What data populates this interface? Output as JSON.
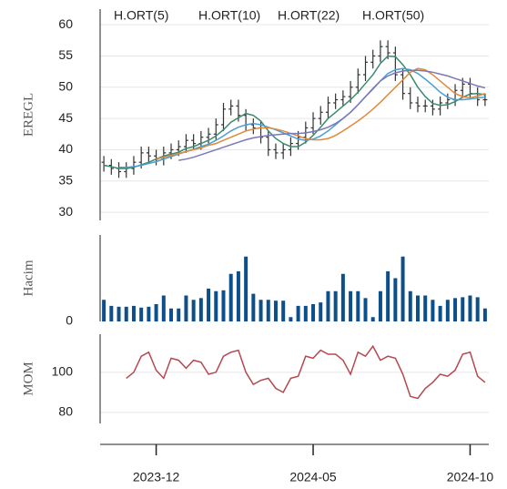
{
  "chart_data": [
    {
      "type": "ohlc",
      "ylabel": "EREGL",
      "open": [
        38,
        37.5,
        37,
        36.5,
        37,
        38,
        39.5,
        39,
        38.5,
        39.5,
        40,
        40.5,
        41.5,
        41,
        42,
        42.5,
        44,
        46.5,
        47,
        45.5,
        44,
        43.5,
        42,
        40,
        39.5,
        40,
        41,
        42,
        43.5,
        45,
        46,
        47.5,
        48,
        48.5,
        50,
        52,
        54,
        55,
        56.5,
        55.5,
        52,
        49,
        47.5,
        47,
        47,
        46.5,
        47.5,
        48,
        49.5,
        50.5,
        49,
        48
      ],
      "high": [
        39,
        38.5,
        38,
        38,
        39,
        40.5,
        40.5,
        40,
        40.5,
        41,
        41.5,
        42.5,
        42.5,
        43,
        43.5,
        45,
        47.5,
        48,
        48,
        46.5,
        45,
        44.5,
        43,
        41,
        41,
        42,
        43,
        44.5,
        46,
        47,
        48.5,
        49,
        49.5,
        51,
        53,
        55,
        56,
        57.5,
        57.5,
        56.5,
        53,
        50,
        48.5,
        48,
        48,
        48.5,
        49,
        50.5,
        51.5,
        51.5,
        50,
        49
      ],
      "low": [
        36.5,
        36,
        35.5,
        35.5,
        36,
        37,
        38,
        37.5,
        37.5,
        38.5,
        39,
        39.5,
        40,
        40,
        41,
        41.5,
        43,
        45.5,
        44.5,
        43,
        42.5,
        41,
        39,
        38.5,
        38.5,
        39,
        40,
        41,
        42.5,
        44,
        45,
        46.5,
        47,
        47.5,
        49,
        51,
        53,
        54,
        54.5,
        51,
        48,
        46.5,
        46,
        46,
        45.5,
        45.5,
        46.5,
        47,
        48.5,
        48,
        47,
        47
      ],
      "close": [
        37.5,
        37,
        36.5,
        37,
        38,
        39.5,
        39,
        38.5,
        39.5,
        40,
        40.5,
        41.5,
        41,
        42,
        42.5,
        44,
        46.5,
        47,
        45.5,
        44,
        43.5,
        42,
        40,
        39.5,
        40,
        41,
        42,
        43.5,
        45,
        46,
        47.5,
        48,
        48.5,
        50,
        52,
        54,
        55,
        56.5,
        55.5,
        52,
        49,
        47.5,
        47,
        47,
        46.5,
        47.5,
        48,
        49.5,
        50.5,
        49,
        48,
        48
      ],
      "color": "#333333",
      "series": [
        {
          "name": "H.ORT(5)",
          "color": "#3a8a6e",
          "values": [
            37.5,
            37.3,
            37,
            37,
            37.2,
            37.6,
            38,
            38.5,
            39,
            39.3,
            39.6,
            40.2,
            40.5,
            41,
            41.5,
            42.2,
            43.2,
            44.4,
            45.1,
            45.8,
            45.5,
            44.6,
            43,
            41.8,
            41,
            40.5,
            40.5,
            41.2,
            42.3,
            43.6,
            45,
            46,
            47,
            48,
            49.2,
            50.6,
            52,
            53.8,
            55,
            54.9,
            53.6,
            52,
            50,
            48.5,
            47.4,
            47.1,
            47.2,
            47.7,
            48.4,
            48.9,
            49,
            48.8
          ]
        },
        {
          "name": "H.ORT(10)",
          "color": "#4a9fd6",
          "values": [
            null,
            null,
            37.2,
            37.2,
            37.3,
            37.5,
            37.8,
            38.1,
            38.5,
            38.9,
            39.3,
            39.7,
            40.1,
            40.5,
            40.9,
            41.5,
            42.2,
            43,
            43.6,
            44,
            44.2,
            44,
            43.6,
            43.2,
            42.7,
            42.2,
            41.7,
            41.5,
            41.7,
            42.2,
            43,
            44,
            45,
            46,
            47.2,
            48.5,
            49.7,
            51,
            52.2,
            52.8,
            53,
            52.8,
            52.2,
            51.3,
            50.3,
            49.2,
            48.4,
            48,
            48,
            48.1,
            48.3,
            48.4
          ]
        },
        {
          "name": "H.ORT(22)",
          "color": "#e0893a",
          "values": [
            null,
            null,
            null,
            null,
            null,
            null,
            null,
            38.5,
            38.8,
            39.1,
            39.4,
            39.7,
            40,
            40.3,
            40.7,
            41,
            41.5,
            42,
            42.5,
            43,
            43.3,
            43.5,
            43.5,
            43.3,
            43,
            42.6,
            42.2,
            41.8,
            41.6,
            41.6,
            41.8,
            42.3,
            43,
            43.8,
            44.6,
            45.5,
            46.5,
            47.6,
            48.8,
            50,
            51.2,
            52.4,
            53,
            52.8,
            52,
            51,
            50,
            49,
            48.5,
            48.3,
            48.6,
            49
          ]
        },
        {
          "name": "H.ORT(50)",
          "color": "#7b78b8",
          "values": [
            null,
            null,
            null,
            null,
            null,
            null,
            null,
            null,
            null,
            null,
            38.3,
            38.5,
            38.8,
            39.2,
            39.6,
            40,
            40.4,
            40.8,
            41.2,
            41.6,
            41.9,
            42.1,
            42.3,
            42.4,
            42.5,
            42.6,
            42.6,
            42.7,
            42.9,
            43.2,
            43.6,
            44.2,
            45,
            46,
            47.2,
            48.5,
            49.8,
            51,
            51.8,
            52.3,
            52.6,
            52.7,
            52.7,
            52.6,
            52.4,
            52.1,
            51.8,
            51.4,
            51,
            50.6,
            50.2,
            49.9
          ]
        }
      ],
      "ylim": [
        28.7,
        62.5
      ],
      "yticks": [
        30,
        35,
        40,
        45,
        50,
        55,
        60
      ],
      "grid": true
    },
    {
      "type": "bar",
      "ylabel": "Hacim",
      "color": "#0d4f8b",
      "values": [
        25,
        18,
        17,
        17,
        18,
        16,
        17,
        20,
        30,
        15,
        15,
        30,
        25,
        27,
        38,
        35,
        36,
        55,
        58,
        75,
        32,
        25,
        25,
        24,
        24,
        5,
        18,
        18,
        20,
        22,
        35,
        35,
        55,
        35,
        35,
        27,
        5,
        35,
        58,
        50,
        75,
        35,
        30,
        30,
        25,
        18,
        25,
        27,
        28,
        30,
        28,
        15
      ],
      "ylim": [
        0,
        100
      ],
      "yticks": [
        0
      ],
      "grid": false
    },
    {
      "type": "line",
      "ylabel": "MOM",
      "color": "#b5484f",
      "categories": [
        null,
        null,
        null,
        null,
        null,
        null,
        null,
        "2023-12",
        null,
        null,
        null,
        null,
        null,
        null,
        null,
        null,
        null,
        null,
        null,
        null,
        null,
        null,
        null,
        null,
        null,
        null,
        null,
        null,
        "2024-05",
        null,
        null,
        null,
        null,
        null,
        null,
        null,
        null,
        null,
        null,
        null,
        null,
        null,
        null,
        null,
        null,
        null,
        null,
        null,
        null,
        "2024-10",
        null,
        null
      ],
      "values": [
        null,
        null,
        null,
        97,
        100,
        108,
        110,
        101,
        97,
        107,
        106,
        102,
        106,
        105,
        99,
        100,
        108,
        110,
        111,
        100,
        94,
        96,
        97,
        92,
        90,
        97,
        98,
        108,
        107,
        111,
        109,
        109,
        106,
        99,
        110,
        108,
        113,
        106,
        108,
        107,
        99,
        88,
        87,
        92,
        95,
        99,
        98,
        101,
        109,
        110,
        98,
        95
      ],
      "ylim": [
        74.5,
        119
      ],
      "yticks": [
        80,
        100
      ],
      "grid": true
    }
  ]
}
